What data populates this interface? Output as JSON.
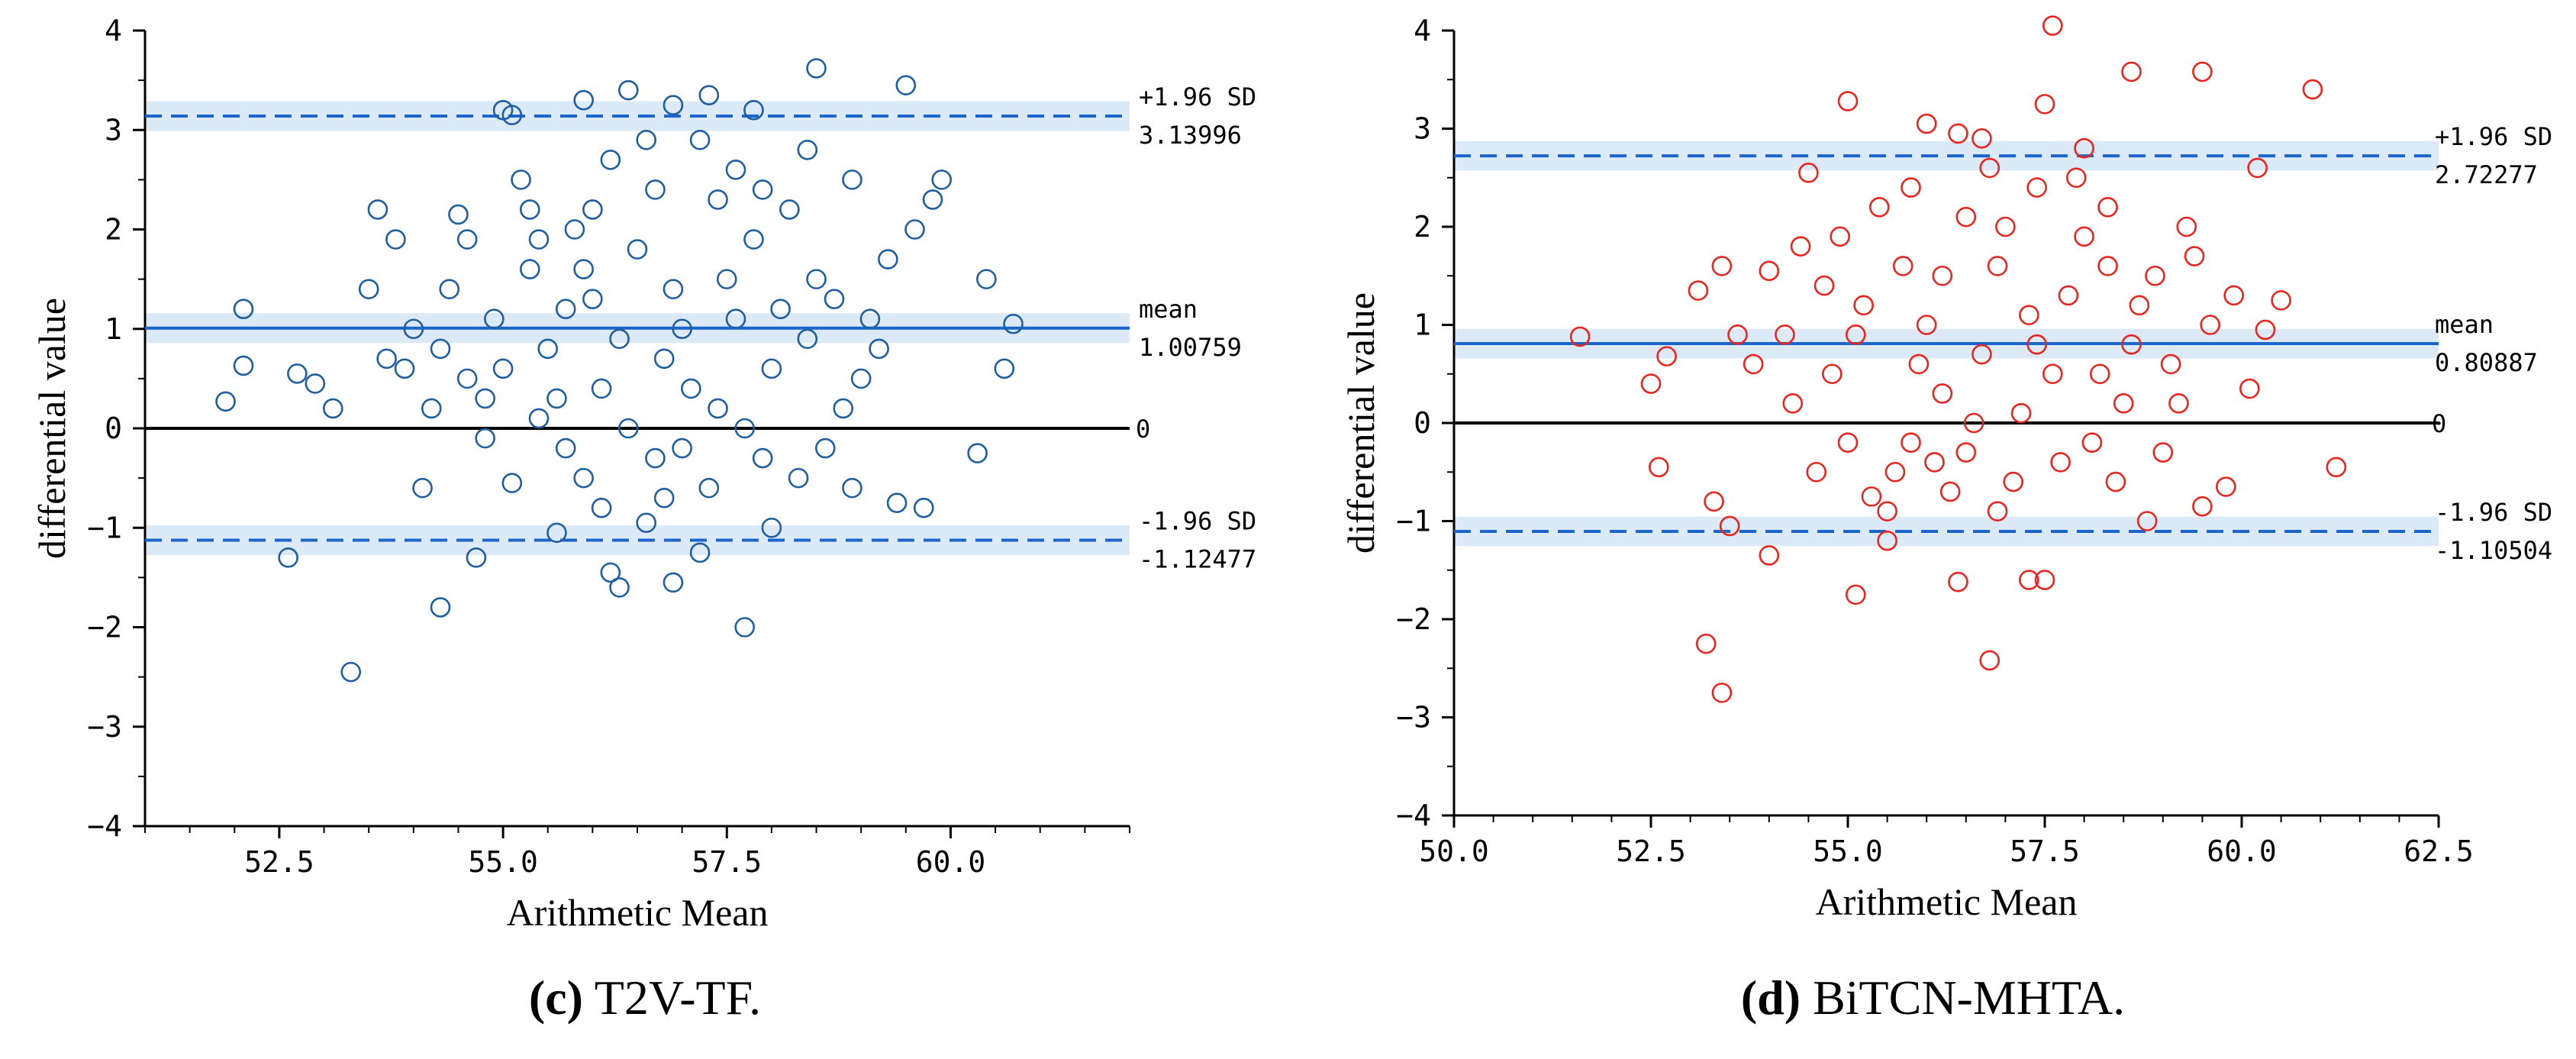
{
  "panels": [
    {
      "caption_letter": "(c)",
      "caption_text": " T2V-TF.",
      "marker_color": "#1f5fa0",
      "chart_data": {
        "type": "scatter",
        "xlabel": "Arithmetic Mean",
        "ylabel": "differential value",
        "xlim": [
          51.0,
          62.0
        ],
        "ylim": [
          -4,
          4
        ],
        "x_ticks": [
          52.5,
          55.0,
          57.5,
          60.0
        ],
        "x_tick_labels": [
          "52.5",
          "55.0",
          "57.5",
          "60.0"
        ],
        "y_ticks": [
          -4,
          -3,
          -2,
          -1,
          0,
          1,
          2,
          3,
          4
        ],
        "y_tick_labels": [
          "−4",
          "−3",
          "−2",
          "−1",
          "0",
          "1",
          "2",
          "3",
          "4"
        ],
        "reference_lines": [
          {
            "kind": "upper",
            "label": "+1.96 SD",
            "value": 3.13996,
            "value_label": "3.13996",
            "style": "dashed",
            "color": "#1a66cc"
          },
          {
            "kind": "mean",
            "label": "mean",
            "value": 1.00759,
            "value_label": "1.00759",
            "style": "solid",
            "color": "#1a66cc"
          },
          {
            "kind": "zero",
            "label": "",
            "value": 0,
            "value_label": "0",
            "style": "solid",
            "color": "#000000"
          },
          {
            "kind": "lower",
            "label": "-1.96 SD",
            "value": -1.12477,
            "value_label": "-1.12477",
            "style": "dashed",
            "color": "#1a66cc"
          }
        ],
        "band_halfwidth": 0.15,
        "marker": "open-circle",
        "points": [
          [
            51.9,
            0.27
          ],
          [
            52.1,
            1.2
          ],
          [
            52.1,
            0.63
          ],
          [
            52.7,
            0.55
          ],
          [
            52.6,
            -1.3
          ],
          [
            53.1,
            0.2
          ],
          [
            52.9,
            0.45
          ],
          [
            53.3,
            -2.45
          ],
          [
            53.6,
            2.2
          ],
          [
            53.8,
            1.9
          ],
          [
            54.3,
            -1.8
          ],
          [
            54.1,
            -0.6
          ],
          [
            53.9,
            0.6
          ],
          [
            54.5,
            2.15
          ],
          [
            55.0,
            3.2
          ],
          [
            55.1,
            3.15
          ],
          [
            55.9,
            3.3
          ],
          [
            56.4,
            3.4
          ],
          [
            56.9,
            3.25
          ],
          [
            57.3,
            3.35
          ],
          [
            57.8,
            3.2
          ],
          [
            58.5,
            3.62
          ],
          [
            59.5,
            3.45
          ],
          [
            59.8,
            2.3
          ],
          [
            60.3,
            -0.25
          ],
          [
            60.4,
            1.5
          ],
          [
            60.7,
            1.05
          ],
          [
            60.6,
            0.6
          ],
          [
            59.7,
            -0.8
          ],
          [
            59.4,
            -0.75
          ],
          [
            58.0,
            -1.0
          ],
          [
            57.7,
            -2.0
          ],
          [
            56.3,
            -1.6
          ],
          [
            56.9,
            -1.55
          ],
          [
            56.2,
            -1.45
          ],
          [
            55.6,
            -1.05
          ],
          [
            54.7,
            -1.3
          ],
          [
            57.2,
            -1.25
          ],
          [
            56.6,
            -0.95
          ],
          [
            55.1,
            -0.55
          ],
          [
            54.8,
            0.3
          ],
          [
            55.4,
            0.1
          ],
          [
            55.7,
            -0.2
          ],
          [
            56.1,
            0.4
          ],
          [
            56.8,
            0.7
          ],
          [
            57.4,
            0.2
          ],
          [
            57.9,
            -0.3
          ],
          [
            58.4,
            0.9
          ],
          [
            58.7,
            1.3
          ],
          [
            59.0,
            0.5
          ],
          [
            59.3,
            1.7
          ],
          [
            58.2,
            2.2
          ],
          [
            57.6,
            2.6
          ],
          [
            56.7,
            2.4
          ],
          [
            55.8,
            2.0
          ],
          [
            55.3,
            1.6
          ],
          [
            54.9,
            1.1
          ],
          [
            54.4,
            1.4
          ],
          [
            54.0,
            1.0
          ],
          [
            53.7,
            0.7
          ],
          [
            54.2,
            0.2
          ],
          [
            55.5,
            0.8
          ],
          [
            56.0,
            1.3
          ],
          [
            56.5,
            1.8
          ],
          [
            57.0,
            1.0
          ],
          [
            57.5,
            1.5
          ],
          [
            58.0,
            0.6
          ],
          [
            58.6,
            -0.2
          ],
          [
            59.1,
            1.1
          ],
          [
            59.6,
            2.0
          ],
          [
            58.9,
            2.5
          ],
          [
            57.2,
            2.9
          ],
          [
            56.2,
            2.7
          ],
          [
            55.2,
            2.5
          ],
          [
            54.6,
            1.9
          ],
          [
            53.5,
            1.4
          ],
          [
            55.9,
            -0.5
          ],
          [
            56.7,
            -0.3
          ],
          [
            57.3,
            -0.6
          ],
          [
            58.3,
            -0.5
          ],
          [
            58.8,
            0.2
          ],
          [
            57.1,
            0.4
          ],
          [
            56.4,
            0.0
          ],
          [
            55.6,
            0.3
          ],
          [
            54.8,
            -0.1
          ],
          [
            56.9,
            1.4
          ],
          [
            57.8,
            1.9
          ],
          [
            58.5,
            1.5
          ],
          [
            59.2,
            0.8
          ],
          [
            56.0,
            2.2
          ],
          [
            55.4,
            1.9
          ],
          [
            56.6,
            2.9
          ],
          [
            57.4,
            2.3
          ],
          [
            58.1,
            1.2
          ],
          [
            55.0,
            0.6
          ],
          [
            56.3,
            0.9
          ],
          [
            57.7,
            0.0
          ],
          [
            58.9,
            -0.6
          ],
          [
            54.3,
            0.8
          ],
          [
            55.7,
            1.2
          ],
          [
            56.8,
            -0.7
          ],
          [
            57.6,
            1.1
          ],
          [
            55.3,
            2.2
          ],
          [
            58.4,
            2.8
          ],
          [
            59.9,
            2.5
          ],
          [
            56.1,
            -0.8
          ],
          [
            57.0,
            -0.2
          ],
          [
            54.6,
            0.5
          ],
          [
            55.9,
            1.6
          ],
          [
            57.9,
            2.4
          ]
        ]
      }
    },
    {
      "caption_letter": "(d)",
      "caption_text": " BiTCN-MHTA.",
      "marker_color": "#e8251f",
      "chart_data": {
        "type": "scatter",
        "xlabel": "Arithmetic Mean",
        "ylabel": "differential value",
        "xlim": [
          50.0,
          62.5
        ],
        "ylim": [
          -4,
          4
        ],
        "x_ticks": [
          50.0,
          52.5,
          55.0,
          57.5,
          60.0,
          62.5
        ],
        "x_tick_labels": [
          "50.0",
          "52.5",
          "55.0",
          "57.5",
          "60.0",
          "62.5"
        ],
        "y_ticks": [
          -4,
          -3,
          -2,
          -1,
          0,
          1,
          2,
          3,
          4
        ],
        "y_tick_labels": [
          "−4",
          "−3",
          "−2",
          "−1",
          "0",
          "1",
          "2",
          "3",
          "4"
        ],
        "reference_lines": [
          {
            "kind": "upper",
            "label": "+1.96 SD",
            "value": 2.72277,
            "value_label": "2.72277",
            "style": "dashed",
            "color": "#1a66cc"
          },
          {
            "kind": "mean",
            "label": "mean",
            "value": 0.80887,
            "value_label": "0.80887",
            "style": "solid",
            "color": "#1a66cc"
          },
          {
            "kind": "zero",
            "label": "",
            "value": 0,
            "value_label": "0",
            "style": "solid",
            "color": "#000000"
          },
          {
            "kind": "lower",
            "label": "-1.96 SD",
            "value": -1.10504,
            "value_label": "-1.10504",
            "style": "dashed",
            "color": "#1a66cc"
          }
        ],
        "band_halfwidth": 0.15,
        "marker": "open-circle",
        "points": [
          [
            51.6,
            0.88
          ],
          [
            52.5,
            0.4
          ],
          [
            52.7,
            0.68
          ],
          [
            52.6,
            -0.45
          ],
          [
            53.2,
            -2.25
          ],
          [
            53.4,
            -2.75
          ],
          [
            53.3,
            -0.8
          ],
          [
            53.5,
            -1.05
          ],
          [
            53.1,
            1.35
          ],
          [
            53.4,
            1.6
          ],
          [
            54.0,
            1.55
          ],
          [
            54.5,
            2.55
          ],
          [
            55.0,
            3.28
          ],
          [
            55.1,
            -1.75
          ],
          [
            55.5,
            -1.2
          ],
          [
            56.0,
            3.05
          ],
          [
            56.4,
            2.95
          ],
          [
            56.7,
            2.9
          ],
          [
            57.6,
            4.05
          ],
          [
            57.5,
            3.25
          ],
          [
            58.0,
            2.8
          ],
          [
            58.6,
            3.58
          ],
          [
            59.5,
            3.58
          ],
          [
            60.9,
            3.4
          ],
          [
            61.2,
            -0.45
          ],
          [
            60.5,
            1.25
          ],
          [
            60.3,
            0.95
          ],
          [
            60.1,
            0.35
          ],
          [
            59.8,
            -0.65
          ],
          [
            59.5,
            -0.85
          ],
          [
            58.8,
            -1.0
          ],
          [
            56.8,
            -2.42
          ],
          [
            57.5,
            -1.6
          ],
          [
            56.4,
            -1.62
          ],
          [
            57.3,
            -1.6
          ],
          [
            54.0,
            -1.35
          ],
          [
            54.6,
            -0.5
          ],
          [
            55.3,
            -0.75
          ],
          [
            55.8,
            -0.2
          ],
          [
            56.2,
            0.3
          ],
          [
            56.7,
            0.7
          ],
          [
            57.2,
            0.1
          ],
          [
            57.7,
            -0.4
          ],
          [
            58.2,
            0.5
          ],
          [
            58.7,
            1.2
          ],
          [
            59.1,
            0.6
          ],
          [
            59.4,
            1.7
          ],
          [
            58.3,
            2.2
          ],
          [
            57.4,
            2.4
          ],
          [
            56.5,
            2.1
          ],
          [
            55.7,
            1.6
          ],
          [
            55.2,
            1.2
          ],
          [
            54.8,
            0.5
          ],
          [
            54.2,
            0.9
          ],
          [
            53.8,
            0.6
          ],
          [
            54.4,
            1.8
          ],
          [
            55.4,
            2.2
          ],
          [
            56.0,
            1.0
          ],
          [
            56.9,
            1.6
          ],
          [
            57.8,
            1.3
          ],
          [
            58.5,
            0.2
          ],
          [
            59.0,
            -0.3
          ],
          [
            59.6,
            1.0
          ],
          [
            59.3,
            2.0
          ],
          [
            58.0,
            1.9
          ],
          [
            57.1,
            -0.6
          ],
          [
            56.3,
            -0.7
          ],
          [
            55.6,
            -0.5
          ],
          [
            55.0,
            -0.2
          ],
          [
            54.3,
            0.2
          ],
          [
            56.6,
            0.0
          ],
          [
            57.6,
            0.5
          ],
          [
            58.4,
            -0.6
          ],
          [
            55.9,
            0.6
          ],
          [
            56.8,
            2.6
          ],
          [
            57.9,
            2.5
          ],
          [
            55.1,
            0.9
          ],
          [
            54.7,
            1.4
          ],
          [
            58.9,
            1.5
          ],
          [
            59.9,
            1.3
          ],
          [
            60.2,
            2.6
          ],
          [
            56.2,
            1.5
          ],
          [
            57.3,
            1.1
          ],
          [
            58.6,
            0.8
          ],
          [
            55.5,
            -0.9
          ],
          [
            56.5,
            -0.3
          ],
          [
            57.0,
            2.0
          ],
          [
            58.1,
            -0.2
          ],
          [
            54.9,
            1.9
          ],
          [
            53.6,
            0.9
          ],
          [
            55.8,
            2.4
          ],
          [
            57.4,
            0.8
          ],
          [
            56.1,
            -0.4
          ],
          [
            58.3,
            1.6
          ],
          [
            59.2,
            0.2
          ],
          [
            56.9,
            -0.9
          ]
        ]
      }
    }
  ]
}
